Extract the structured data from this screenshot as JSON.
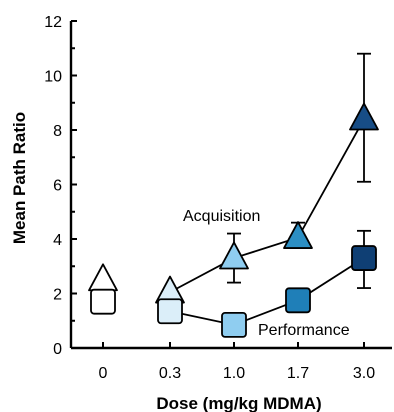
{
  "chart_data": {
    "type": "scatter",
    "title": "",
    "xlabel": "Dose (mg/kg MDMA)",
    "ylabel": "Mean Path Ratio",
    "ylim": [
      0,
      12
    ],
    "yticks": [
      0,
      2,
      4,
      6,
      8,
      10,
      12
    ],
    "categories": [
      "0",
      "0.3",
      "1.0",
      "1.7",
      "3.0"
    ],
    "grid": false,
    "series": [
      {
        "name": "Acquisition",
        "marker": "triangle",
        "points": [
          {
            "category": "0",
            "y": 2.5,
            "err": null,
            "color": "#ffffff"
          },
          {
            "category": "0.3",
            "y": 2.05,
            "err": null,
            "color": "#dbeef9"
          },
          {
            "category": "1.0",
            "y": 3.3,
            "err": [
              2.4,
              4.2
            ],
            "color": "#8fcdf0"
          },
          {
            "category": "1.7",
            "y": 4.05,
            "err": [
              3.9,
              4.6
            ],
            "color": "#2c8fc4"
          },
          {
            "category": "3.0",
            "y": 8.4,
            "err": [
              6.1,
              10.8
            ],
            "color": "#174d86"
          }
        ]
      },
      {
        "name": "Performance",
        "marker": "square",
        "points": [
          {
            "category": "0",
            "y": 1.7,
            "err": null,
            "color": "#ffffff"
          },
          {
            "category": "0.3",
            "y": 1.35,
            "err": null,
            "color": "#dbeef9"
          },
          {
            "category": "1.0",
            "y": 0.85,
            "err": null,
            "color": "#8fcdf0"
          },
          {
            "category": "1.7",
            "y": 1.75,
            "err": null,
            "color": "#1f7fb8"
          },
          {
            "category": "3.0",
            "y": 3.3,
            "err": [
              2.2,
              4.3
            ],
            "color": "#0f3f74"
          }
        ]
      }
    ],
    "annotations": [
      {
        "text": "Acquisition",
        "series": "Acquisition"
      },
      {
        "text": "Performance",
        "series": "Performance"
      }
    ]
  }
}
